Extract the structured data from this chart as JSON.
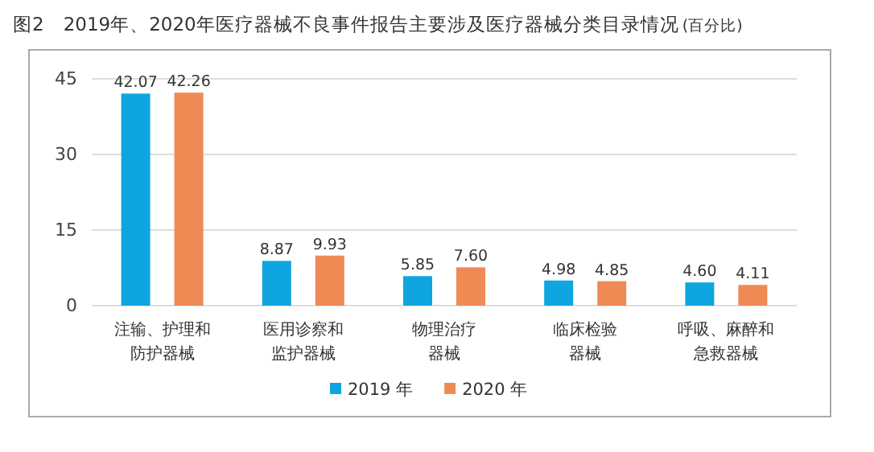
{
  "chart_data": {
    "type": "bar",
    "title": "图2　2019年、2020年医疗器械不良事件报告主要涉及医疗器械分类目录情况",
    "subtitle": "(百分比)",
    "categories": [
      "注输、护理和防护器械",
      "医用诊察和监护器械",
      "物理治疗器械",
      "临床检验器械",
      "呼吸、麻醉和急救器械"
    ],
    "series": [
      {
        "name": "2019 年",
        "color": "#0ea5e0",
        "values": [
          42.07,
          8.87,
          5.85,
          4.98,
          4.6
        ],
        "value_labels": [
          "42.07",
          "8.87",
          "5.85",
          "4.98",
          "4.60"
        ]
      },
      {
        "name": "2020 年",
        "color": "#f08a55",
        "values": [
          42.26,
          9.93,
          7.6,
          4.85,
          4.11
        ],
        "value_labels": [
          "42.26",
          "9.93",
          "7.60",
          "4.85",
          "4.11"
        ]
      }
    ],
    "ylim": [
      0,
      45
    ],
    "yticks": [
      0,
      15,
      30,
      45
    ],
    "grid": "y",
    "legend": "bottom"
  }
}
